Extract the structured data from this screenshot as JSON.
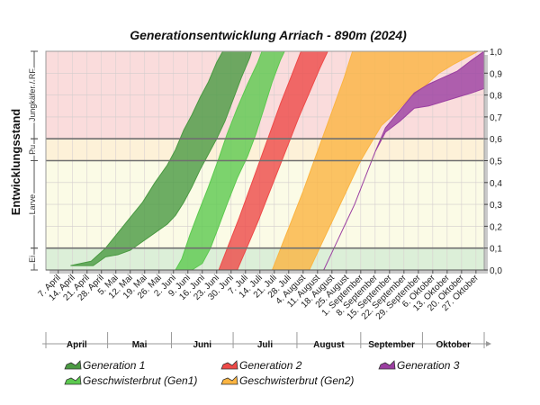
{
  "chart_data": {
    "type": "area",
    "title": "Generationsentwicklung Arriach - 890m (2024)",
    "ylabel": "Entwicklungsstand",
    "ylim": [
      0,
      1
    ],
    "y_ticks": [
      "0,0",
      "0,1",
      "0,2",
      "0,3",
      "0,4",
      "0,5",
      "0,6",
      "0,7",
      "0,8",
      "0,9",
      "1,0"
    ],
    "y_threshold_lines": [
      0.1,
      0.5,
      0.6
    ],
    "x_range": [
      "2024-04-01",
      "2024-10-31"
    ],
    "x_tick_labels": [
      "7. April",
      "14. April",
      "21. April",
      "28. April",
      "5. Mai",
      "12. Mai",
      "19. Mai",
      "26. Mai",
      "2. Juni",
      "9. Juni",
      "16. Juni",
      "23. Juni",
      "30. Juni",
      "7. Juli",
      "14. Juli",
      "21. Juli",
      "28. Juli",
      "4. August",
      "11. August",
      "18. August",
      "25. August",
      "1. September",
      "8. September",
      "15. September",
      "22. September",
      "29. September",
      "6. Oktober",
      "13. Oktober",
      "20. Oktober",
      "27. Oktober"
    ],
    "months": [
      "April",
      "Mai",
      "Juni",
      "Juli",
      "August",
      "September",
      "Oktober"
    ],
    "stages": [
      {
        "label": "Ei",
        "from": 0.0,
        "to": 0.1,
        "color": "#dcefd8"
      },
      {
        "label": "Larve",
        "from": 0.1,
        "to": 0.5,
        "color": "#fbfbe6"
      },
      {
        "label": "Pu",
        "from": 0.5,
        "to": 0.6,
        "color": "#fdf1d8"
      },
      {
        "label": "Jungkäfer / RF",
        "from": 0.6,
        "to": 1.0,
        "color": "#fadcdc"
      }
    ],
    "series": [
      {
        "name": "Generation 1",
        "color": "#4a9a42",
        "lower": [
          [
            "2024-04-13",
            0.02
          ],
          [
            "2024-04-24",
            0.02
          ],
          [
            "2024-04-30",
            0.06
          ],
          [
            "2024-05-06",
            0.07
          ],
          [
            "2024-05-12",
            0.09
          ],
          [
            "2024-05-18",
            0.13
          ],
          [
            "2024-05-24",
            0.17
          ],
          [
            "2024-05-30",
            0.21
          ],
          [
            "2024-06-03",
            0.25
          ],
          [
            "2024-06-07",
            0.31
          ],
          [
            "2024-06-11",
            0.38
          ],
          [
            "2024-06-15",
            0.46
          ],
          [
            "2024-06-19",
            0.53
          ],
          [
            "2024-06-23",
            0.6
          ],
          [
            "2024-06-27",
            0.68
          ],
          [
            "2024-07-01",
            0.78
          ],
          [
            "2024-07-05",
            0.88
          ],
          [
            "2024-07-09",
            0.97
          ],
          [
            "2024-07-10",
            1.0
          ]
        ],
        "upper": [
          [
            "2024-04-13",
            0.02
          ],
          [
            "2024-04-23",
            0.04
          ],
          [
            "2024-04-30",
            0.1
          ],
          [
            "2024-05-06",
            0.17
          ],
          [
            "2024-05-12",
            0.24
          ],
          [
            "2024-05-18",
            0.31
          ],
          [
            "2024-05-24",
            0.4
          ],
          [
            "2024-05-30",
            0.48
          ],
          [
            "2024-06-03",
            0.55
          ],
          [
            "2024-06-07",
            0.64
          ],
          [
            "2024-06-11",
            0.71
          ],
          [
            "2024-06-15",
            0.79
          ],
          [
            "2024-06-19",
            0.86
          ],
          [
            "2024-06-23",
            0.95
          ],
          [
            "2024-06-26",
            1.0
          ]
        ]
      },
      {
        "name": "Geschwisterbrut (Gen1)",
        "color": "#5cc94f",
        "lower": [
          [
            "2024-06-11",
            0.0
          ],
          [
            "2024-06-16",
            0.03
          ],
          [
            "2024-06-20",
            0.1
          ],
          [
            "2024-06-24",
            0.2
          ],
          [
            "2024-06-28",
            0.3
          ],
          [
            "2024-07-03",
            0.42
          ],
          [
            "2024-07-08",
            0.52
          ],
          [
            "2024-07-12",
            0.62
          ],
          [
            "2024-07-16",
            0.74
          ],
          [
            "2024-07-20",
            0.86
          ],
          [
            "2024-07-24",
            0.96
          ],
          [
            "2024-07-26",
            1.0
          ]
        ],
        "upper": [
          [
            "2024-06-03",
            0.0
          ],
          [
            "2024-06-06",
            0.05
          ],
          [
            "2024-06-10",
            0.16
          ],
          [
            "2024-06-14",
            0.26
          ],
          [
            "2024-06-19",
            0.38
          ],
          [
            "2024-06-24",
            0.51
          ],
          [
            "2024-06-28",
            0.62
          ],
          [
            "2024-07-03",
            0.74
          ],
          [
            "2024-07-08",
            0.85
          ],
          [
            "2024-07-13",
            0.95
          ],
          [
            "2024-07-15",
            1.0
          ]
        ]
      },
      {
        "name": "Generation 2",
        "color": "#ee4a48",
        "lower": [
          [
            "2024-07-03",
            0.0
          ],
          [
            "2024-07-08",
            0.11
          ],
          [
            "2024-07-13",
            0.22
          ],
          [
            "2024-07-18",
            0.34
          ],
          [
            "2024-07-23",
            0.46
          ],
          [
            "2024-07-28",
            0.58
          ],
          [
            "2024-08-02",
            0.7
          ],
          [
            "2024-08-07",
            0.81
          ],
          [
            "2024-08-12",
            0.92
          ],
          [
            "2024-08-16",
            1.0
          ]
        ],
        "upper": [
          [
            "2024-06-24",
            0.0
          ],
          [
            "2024-06-29",
            0.12
          ],
          [
            "2024-07-04",
            0.24
          ],
          [
            "2024-07-09",
            0.37
          ],
          [
            "2024-07-14",
            0.5
          ],
          [
            "2024-07-19",
            0.63
          ],
          [
            "2024-07-24",
            0.76
          ],
          [
            "2024-07-29",
            0.88
          ],
          [
            "2024-08-03",
            1.0
          ]
        ]
      },
      {
        "name": "Geschwisterbrut (Gen2)",
        "color": "#fbb441",
        "lower": [
          [
            "2024-08-07",
            0.0
          ],
          [
            "2024-08-12",
            0.1
          ],
          [
            "2024-08-17",
            0.2
          ],
          [
            "2024-08-22",
            0.3
          ],
          [
            "2024-08-27",
            0.4
          ],
          [
            "2024-09-01",
            0.5
          ],
          [
            "2024-09-06",
            0.58
          ],
          [
            "2024-09-11",
            0.66
          ],
          [
            "2024-09-18",
            0.72
          ],
          [
            "2024-09-25",
            0.79
          ],
          [
            "2024-10-02",
            0.84
          ],
          [
            "2024-10-09",
            0.9
          ],
          [
            "2024-10-16",
            0.94
          ],
          [
            "2024-10-22",
            0.97
          ],
          [
            "2024-10-28",
            1.0
          ]
        ],
        "upper": [
          [
            "2024-07-20",
            0.0
          ],
          [
            "2024-07-25",
            0.12
          ],
          [
            "2024-07-30",
            0.24
          ],
          [
            "2024-08-04",
            0.36
          ],
          [
            "2024-08-09",
            0.49
          ],
          [
            "2024-08-14",
            0.62
          ],
          [
            "2024-08-19",
            0.75
          ],
          [
            "2024-08-24",
            0.88
          ],
          [
            "2024-08-28",
            1.0
          ]
        ]
      },
      {
        "name": "Generation 3",
        "color": "#9b3fa1",
        "lower": [
          [
            "2024-08-14",
            0.0
          ],
          [
            "2024-08-19",
            0.1
          ],
          [
            "2024-08-24",
            0.2
          ],
          [
            "2024-08-29",
            0.3
          ],
          [
            "2024-09-03",
            0.42
          ],
          [
            "2024-09-08",
            0.54
          ],
          [
            "2024-09-13",
            0.63
          ],
          [
            "2024-09-20",
            0.68
          ],
          [
            "2024-09-27",
            0.74
          ],
          [
            "2024-10-04",
            0.75
          ],
          [
            "2024-10-11",
            0.77
          ],
          [
            "2024-10-18",
            0.79
          ],
          [
            "2024-10-25",
            0.81
          ],
          [
            "2024-10-31",
            0.83
          ]
        ],
        "upper": [
          [
            "2024-08-14",
            0.0
          ],
          [
            "2024-08-19",
            0.1
          ],
          [
            "2024-08-24",
            0.2
          ],
          [
            "2024-08-29",
            0.3
          ],
          [
            "2024-09-03",
            0.42
          ],
          [
            "2024-09-08",
            0.54
          ],
          [
            "2024-09-13",
            0.65
          ],
          [
            "2024-09-20",
            0.73
          ],
          [
            "2024-09-27",
            0.81
          ],
          [
            "2024-10-04",
            0.85
          ],
          [
            "2024-10-11",
            0.88
          ],
          [
            "2024-10-18",
            0.91
          ],
          [
            "2024-10-25",
            0.96
          ],
          [
            "2024-10-31",
            1.0
          ]
        ]
      }
    ]
  }
}
